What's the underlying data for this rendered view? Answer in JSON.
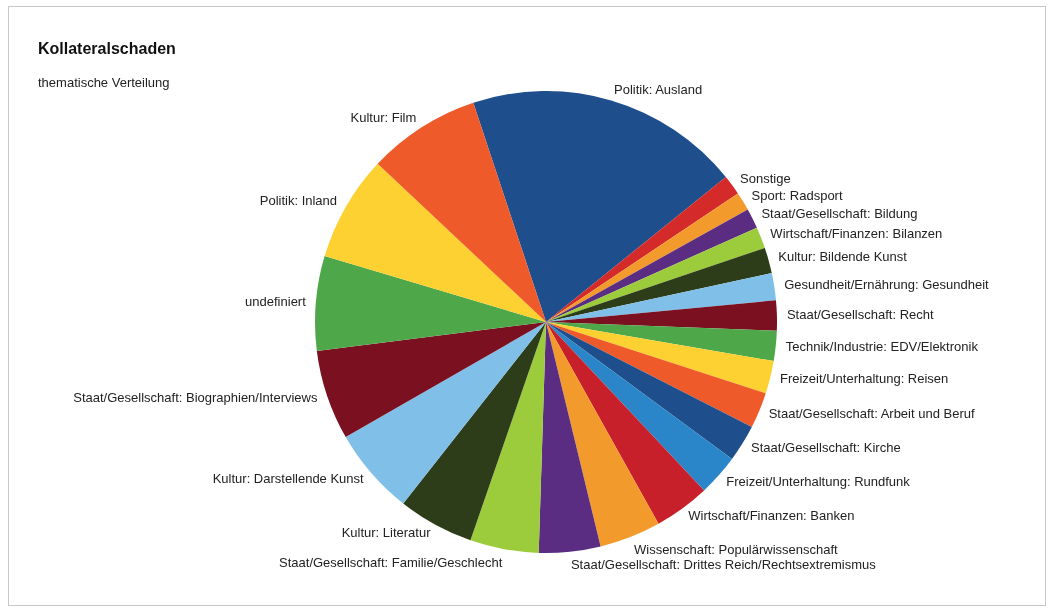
{
  "chart_data": {
    "type": "pie",
    "title": "Kollateralschaden",
    "subtitle": "thematische Verteilung",
    "categories": [
      "Politik: Ausland",
      "Sonstige",
      "Sport: Radsport",
      "Staat/Gesellschaft: Bildung",
      "Wirtschaft/Finanzen: Bilanzen",
      "Kultur: Bildende Kunst",
      "Gesundheit/Ernährung: Gesundheit",
      "Staat/Gesellschaft: Recht",
      "Technik/Industrie: EDV/Elektronik",
      "Freizeit/Unterhaltung: Reisen",
      "Staat/Gesellschaft: Arbeit und Beruf",
      "Staat/Gesellschaft: Kirche",
      "Freizeit/Unterhaltung: Rundfunk",
      "Wirtschaft/Finanzen: Banken",
      "Wissenschaft: Populärwissenschaft",
      "Staat/Gesellschaft: Drittes Reich/Rechtsextremismus",
      "Staat/Gesellschaft: Familie/Geschlecht",
      "Kultur: Literatur",
      "Kultur: Darstellende Kunst",
      "Staat/Gesellschaft: Biographien/Interviews",
      "undefiniert",
      "Politik: Inland",
      "Kultur: Film"
    ],
    "values": [
      19.3,
      1.4,
      1.3,
      1.4,
      1.5,
      1.8,
      1.9,
      2.1,
      2.1,
      2.3,
      2.5,
      2.6,
      2.9,
      3.9,
      4.3,
      4.3,
      4.8,
      5.3,
      6.1,
      6.3,
      6.6,
      7.4,
      7.9
    ],
    "colors": [
      "#1f4e8c",
      "#d42a2a",
      "#f39a2c",
      "#5b2d82",
      "#9ccc3c",
      "#2d3d1a",
      "#7fbfe8",
      "#7a1020",
      "#4ea84a",
      "#fdd131",
      "#ef5a2a",
      "#1f4e8c",
      "#2a86c8",
      "#c8202a",
      "#f39a2c",
      "#5b2d82",
      "#9ccc3c",
      "#2d3d1a",
      "#7fbfe8",
      "#7a1020",
      "#4ea84a",
      "#fdd131",
      "#ef5a2a"
    ]
  }
}
